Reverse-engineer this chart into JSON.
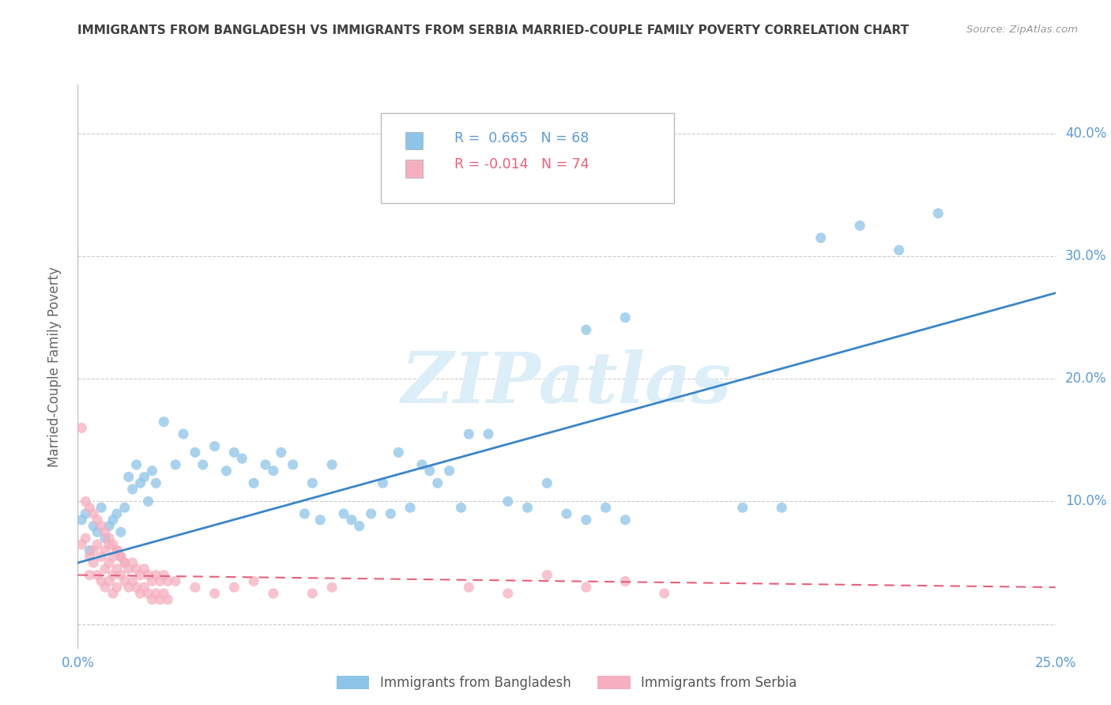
{
  "title": "IMMIGRANTS FROM BANGLADESH VS IMMIGRANTS FROM SERBIA MARRIED-COUPLE FAMILY POVERTY CORRELATION CHART",
  "source": "Source: ZipAtlas.com",
  "ylabel": "Married-Couple Family Poverty",
  "xlim": [
    0.0,
    0.25
  ],
  "ylim": [
    -0.02,
    0.44
  ],
  "ytick_vals": [
    0.0,
    0.1,
    0.2,
    0.3,
    0.4
  ],
  "ytick_labels_left": [
    "",
    "",
    "",
    "",
    ""
  ],
  "ytick_labels_right": [
    "",
    "10.0%",
    "20.0%",
    "30.0%",
    "40.0%"
  ],
  "xtick_vals": [
    0.0,
    0.05,
    0.1,
    0.15,
    0.2,
    0.25
  ],
  "xtick_labels": [
    "0.0%",
    "",
    "",
    "",
    "",
    "25.0%"
  ],
  "bangladesh_R": 0.665,
  "bangladesh_N": 68,
  "serbia_R": -0.014,
  "serbia_N": 74,
  "bangladesh_color": "#8ec4e8",
  "serbia_color": "#f5afc0",
  "bangladesh_line_color": "#3a86c8",
  "serbia_line_color": "#e8607a",
  "watermark": "ZIPatlas",
  "watermark_color": "#dceef8",
  "background_color": "#ffffff",
  "grid_color": "#cccccc",
  "tick_color": "#5b9bd5",
  "title_color": "#404040",
  "bangladesh_scatter": [
    [
      0.001,
      0.085
    ],
    [
      0.002,
      0.09
    ],
    [
      0.003,
      0.06
    ],
    [
      0.004,
      0.08
    ],
    [
      0.005,
      0.075
    ],
    [
      0.006,
      0.095
    ],
    [
      0.007,
      0.07
    ],
    [
      0.008,
      0.08
    ],
    [
      0.009,
      0.085
    ],
    [
      0.01,
      0.09
    ],
    [
      0.011,
      0.075
    ],
    [
      0.012,
      0.095
    ],
    [
      0.013,
      0.12
    ],
    [
      0.014,
      0.11
    ],
    [
      0.015,
      0.13
    ],
    [
      0.016,
      0.115
    ],
    [
      0.017,
      0.12
    ],
    [
      0.018,
      0.1
    ],
    [
      0.019,
      0.125
    ],
    [
      0.02,
      0.115
    ],
    [
      0.022,
      0.165
    ],
    [
      0.025,
      0.13
    ],
    [
      0.027,
      0.155
    ],
    [
      0.03,
      0.14
    ],
    [
      0.032,
      0.13
    ],
    [
      0.035,
      0.145
    ],
    [
      0.038,
      0.125
    ],
    [
      0.04,
      0.14
    ],
    [
      0.042,
      0.135
    ],
    [
      0.045,
      0.115
    ],
    [
      0.048,
      0.13
    ],
    [
      0.05,
      0.125
    ],
    [
      0.052,
      0.14
    ],
    [
      0.055,
      0.13
    ],
    [
      0.058,
      0.09
    ],
    [
      0.06,
      0.115
    ],
    [
      0.062,
      0.085
    ],
    [
      0.065,
      0.13
    ],
    [
      0.068,
      0.09
    ],
    [
      0.07,
      0.085
    ],
    [
      0.072,
      0.08
    ],
    [
      0.075,
      0.09
    ],
    [
      0.078,
      0.115
    ],
    [
      0.08,
      0.09
    ],
    [
      0.082,
      0.14
    ],
    [
      0.085,
      0.095
    ],
    [
      0.088,
      0.13
    ],
    [
      0.09,
      0.125
    ],
    [
      0.092,
      0.115
    ],
    [
      0.095,
      0.125
    ],
    [
      0.098,
      0.095
    ],
    [
      0.1,
      0.155
    ],
    [
      0.105,
      0.155
    ],
    [
      0.11,
      0.1
    ],
    [
      0.115,
      0.095
    ],
    [
      0.12,
      0.115
    ],
    [
      0.125,
      0.09
    ],
    [
      0.13,
      0.085
    ],
    [
      0.135,
      0.095
    ],
    [
      0.14,
      0.085
    ],
    [
      0.17,
      0.095
    ],
    [
      0.18,
      0.095
    ],
    [
      0.19,
      0.315
    ],
    [
      0.2,
      0.325
    ],
    [
      0.21,
      0.305
    ],
    [
      0.22,
      0.335
    ],
    [
      0.14,
      0.25
    ],
    [
      0.13,
      0.24
    ]
  ],
  "serbia_scatter": [
    [
      0.001,
      0.065
    ],
    [
      0.002,
      0.07
    ],
    [
      0.003,
      0.055
    ],
    [
      0.003,
      0.04
    ],
    [
      0.004,
      0.06
    ],
    [
      0.004,
      0.05
    ],
    [
      0.005,
      0.065
    ],
    [
      0.005,
      0.04
    ],
    [
      0.006,
      0.055
    ],
    [
      0.006,
      0.035
    ],
    [
      0.007,
      0.06
    ],
    [
      0.007,
      0.045
    ],
    [
      0.007,
      0.03
    ],
    [
      0.008,
      0.065
    ],
    [
      0.008,
      0.05
    ],
    [
      0.008,
      0.035
    ],
    [
      0.009,
      0.055
    ],
    [
      0.009,
      0.04
    ],
    [
      0.009,
      0.025
    ],
    [
      0.01,
      0.06
    ],
    [
      0.01,
      0.045
    ],
    [
      0.01,
      0.03
    ],
    [
      0.011,
      0.055
    ],
    [
      0.011,
      0.04
    ],
    [
      0.012,
      0.05
    ],
    [
      0.012,
      0.035
    ],
    [
      0.013,
      0.045
    ],
    [
      0.013,
      0.03
    ],
    [
      0.014,
      0.05
    ],
    [
      0.014,
      0.035
    ],
    [
      0.015,
      0.045
    ],
    [
      0.015,
      0.03
    ],
    [
      0.016,
      0.04
    ],
    [
      0.016,
      0.025
    ],
    [
      0.017,
      0.045
    ],
    [
      0.017,
      0.03
    ],
    [
      0.018,
      0.04
    ],
    [
      0.018,
      0.025
    ],
    [
      0.019,
      0.035
    ],
    [
      0.019,
      0.02
    ],
    [
      0.02,
      0.04
    ],
    [
      0.02,
      0.025
    ],
    [
      0.021,
      0.035
    ],
    [
      0.021,
      0.02
    ],
    [
      0.022,
      0.04
    ],
    [
      0.022,
      0.025
    ],
    [
      0.023,
      0.035
    ],
    [
      0.023,
      0.02
    ],
    [
      0.001,
      0.16
    ],
    [
      0.002,
      0.1
    ],
    [
      0.003,
      0.095
    ],
    [
      0.004,
      0.09
    ],
    [
      0.005,
      0.085
    ],
    [
      0.006,
      0.08
    ],
    [
      0.007,
      0.075
    ],
    [
      0.008,
      0.07
    ],
    [
      0.009,
      0.065
    ],
    [
      0.01,
      0.06
    ],
    [
      0.011,
      0.055
    ],
    [
      0.012,
      0.05
    ],
    [
      0.025,
      0.035
    ],
    [
      0.03,
      0.03
    ],
    [
      0.035,
      0.025
    ],
    [
      0.04,
      0.03
    ],
    [
      0.045,
      0.035
    ],
    [
      0.05,
      0.025
    ],
    [
      0.06,
      0.025
    ],
    [
      0.065,
      0.03
    ],
    [
      0.1,
      0.03
    ],
    [
      0.11,
      0.025
    ],
    [
      0.12,
      0.04
    ],
    [
      0.13,
      0.03
    ],
    [
      0.14,
      0.035
    ],
    [
      0.15,
      0.025
    ]
  ],
  "bd_line_x": [
    0.0,
    0.25
  ],
  "bd_line_y": [
    0.05,
    0.27
  ],
  "sr_line_x": [
    0.0,
    0.25
  ],
  "sr_line_y": [
    0.04,
    0.03
  ]
}
